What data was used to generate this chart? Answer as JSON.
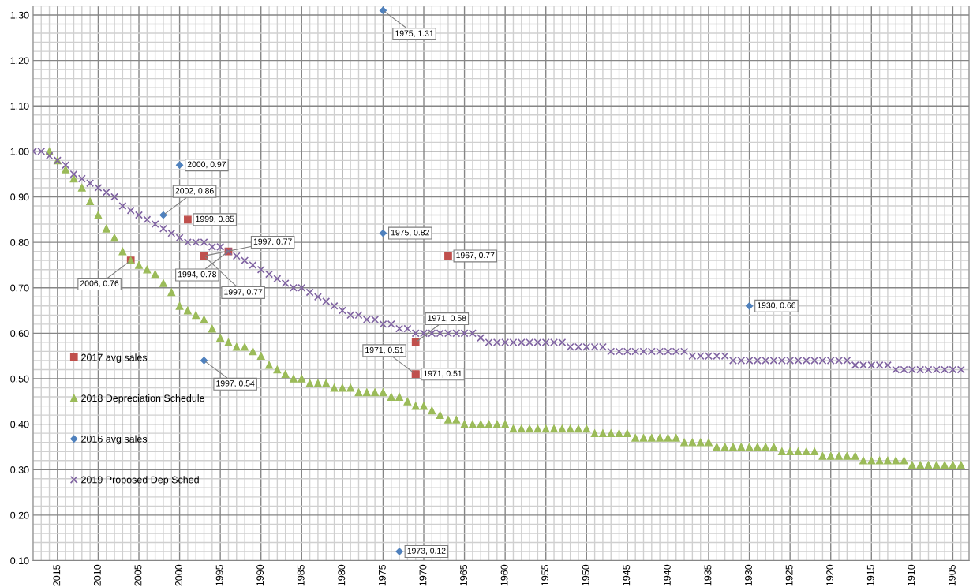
{
  "chart_data": {
    "type": "scatter",
    "series": [
      {
        "name": "2017 avg sales",
        "color": "#c0504d",
        "marker": "square",
        "x": [
          2006,
          1999,
          1997,
          1997,
          1994,
          1967,
          1971,
          1971,
          1971
        ],
        "values": [
          0.76,
          0.85,
          0.77,
          0.77,
          0.78,
          0.77,
          0.58,
          0.51,
          0.51
        ],
        "value_labels": [
          "2006, 0.76",
          "1999, 0.85",
          "1997, 0.77",
          "1997, 0.77",
          "1994, 0.78",
          "1967, 0.77",
          "1971, 0.58",
          "1971, 0.51",
          "1971, 0.51"
        ]
      },
      {
        "name": "2018 Depreciation Schedule",
        "color": "#9bbb59",
        "marker": "triangle",
        "x": [
          2016,
          2015,
          2014,
          2013,
          2012,
          2011,
          2010,
          2009,
          2008,
          2007,
          2006,
          2005,
          2004,
          2003,
          2002,
          2001,
          2000,
          1999,
          1998,
          1997,
          1996,
          1995,
          1994,
          1993,
          1992,
          1991,
          1990,
          1989,
          1988,
          1987,
          1986,
          1985,
          1984,
          1983,
          1982,
          1981,
          1980,
          1979,
          1978,
          1977,
          1976,
          1975,
          1974,
          1973,
          1972,
          1971,
          1970,
          1969,
          1968,
          1967,
          1966,
          1965,
          1964,
          1963,
          1962,
          1961,
          1960,
          1959,
          1958,
          1957,
          1956,
          1955,
          1954,
          1953,
          1952,
          1951,
          1950,
          1949,
          1948,
          1947,
          1946,
          1945,
          1944,
          1943,
          1942,
          1941,
          1940,
          1939,
          1938,
          1937,
          1936,
          1935,
          1934,
          1933,
          1932,
          1931,
          1930,
          1929,
          1928,
          1927,
          1926,
          1925,
          1924,
          1923,
          1922,
          1921,
          1920,
          1919,
          1918,
          1917,
          1916,
          1915,
          1914,
          1913,
          1912,
          1911,
          1910,
          1909,
          1908,
          1907,
          1906,
          1905,
          1904
        ],
        "values": [
          1.0,
          0.98,
          0.96,
          0.94,
          0.92,
          0.89,
          0.86,
          0.83,
          0.81,
          0.78,
          0.76,
          0.75,
          0.74,
          0.73,
          0.71,
          0.69,
          0.66,
          0.65,
          0.64,
          0.63,
          0.61,
          0.59,
          0.58,
          0.57,
          0.57,
          0.56,
          0.55,
          0.53,
          0.52,
          0.51,
          0.5,
          0.5,
          0.49,
          0.49,
          0.49,
          0.48,
          0.48,
          0.48,
          0.47,
          0.47,
          0.47,
          0.47,
          0.46,
          0.46,
          0.45,
          0.44,
          0.44,
          0.43,
          0.42,
          0.41,
          0.41,
          0.4,
          0.4,
          0.4,
          0.4,
          0.4,
          0.4,
          0.39,
          0.39,
          0.39,
          0.39,
          0.39,
          0.39,
          0.39,
          0.39,
          0.39,
          0.39,
          0.38,
          0.38,
          0.38,
          0.38,
          0.38,
          0.37,
          0.37,
          0.37,
          0.37,
          0.37,
          0.37,
          0.36,
          0.36,
          0.36,
          0.36,
          0.35,
          0.35,
          0.35,
          0.35,
          0.35,
          0.35,
          0.35,
          0.35,
          0.34,
          0.34,
          0.34,
          0.34,
          0.34,
          0.33,
          0.33,
          0.33,
          0.33,
          0.33,
          0.32,
          0.32,
          0.32,
          0.32,
          0.32,
          0.32,
          0.31,
          0.31,
          0.31,
          0.31,
          0.31,
          0.31,
          0.31
        ]
      },
      {
        "name": "2016 avg sales",
        "color": "#4f81bd",
        "marker": "diamond",
        "x": [
          2000,
          2002,
          1975,
          1997,
          1975,
          1930,
          1973
        ],
        "values": [
          0.97,
          0.86,
          0.82,
          0.54,
          1.31,
          0.66,
          0.12
        ],
        "value_labels": [
          "2000, 0.97",
          "2002, 0.86",
          "1975, 0.82",
          "1997, 0.54",
          "1975, 1.31",
          "1930, 0.66",
          "1973, 0.12"
        ]
      },
      {
        "name": "2019 Proposed Dep Sched",
        "color": "#8064a2",
        "marker": "cross",
        "x": [
          2018,
          2017,
          2016,
          2015,
          2014,
          2013,
          2012,
          2011,
          2010,
          2009,
          2008,
          2007,
          2006,
          2005,
          2004,
          2003,
          2002,
          2001,
          2000,
          1999,
          1998,
          1997,
          1996,
          1995,
          1994,
          1993,
          1992,
          1991,
          1990,
          1989,
          1988,
          1987,
          1986,
          1985,
          1984,
          1983,
          1982,
          1981,
          1980,
          1979,
          1978,
          1977,
          1976,
          1975,
          1974,
          1973,
          1972,
          1971,
          1970,
          1969,
          1968,
          1967,
          1966,
          1965,
          1964,
          1963,
          1962,
          1961,
          1960,
          1959,
          1958,
          1957,
          1956,
          1955,
          1954,
          1953,
          1952,
          1951,
          1950,
          1949,
          1948,
          1947,
          1946,
          1945,
          1944,
          1943,
          1942,
          1941,
          1940,
          1939,
          1938,
          1937,
          1936,
          1935,
          1934,
          1933,
          1932,
          1931,
          1930,
          1929,
          1928,
          1927,
          1926,
          1925,
          1924,
          1923,
          1922,
          1921,
          1920,
          1919,
          1918,
          1917,
          1916,
          1915,
          1914,
          1913,
          1912,
          1911,
          1910,
          1909,
          1908,
          1907,
          1906,
          1905,
          1904
        ],
        "values": [
          1.0,
          1.0,
          0.99,
          0.98,
          0.97,
          0.95,
          0.94,
          0.93,
          0.92,
          0.91,
          0.9,
          0.88,
          0.87,
          0.86,
          0.85,
          0.84,
          0.83,
          0.82,
          0.81,
          0.8,
          0.8,
          0.8,
          0.79,
          0.79,
          0.78,
          0.77,
          0.76,
          0.75,
          0.74,
          0.73,
          0.72,
          0.71,
          0.7,
          0.7,
          0.69,
          0.68,
          0.67,
          0.66,
          0.65,
          0.64,
          0.64,
          0.63,
          0.63,
          0.62,
          0.62,
          0.61,
          0.61,
          0.6,
          0.6,
          0.6,
          0.6,
          0.6,
          0.6,
          0.6,
          0.6,
          0.59,
          0.58,
          0.58,
          0.58,
          0.58,
          0.58,
          0.58,
          0.58,
          0.58,
          0.58,
          0.58,
          0.57,
          0.57,
          0.57,
          0.57,
          0.57,
          0.56,
          0.56,
          0.56,
          0.56,
          0.56,
          0.56,
          0.56,
          0.56,
          0.56,
          0.56,
          0.55,
          0.55,
          0.55,
          0.55,
          0.55,
          0.54,
          0.54,
          0.54,
          0.54,
          0.54,
          0.54,
          0.54,
          0.54,
          0.54,
          0.54,
          0.54,
          0.54,
          0.54,
          0.54,
          0.54,
          0.53,
          0.53,
          0.53,
          0.53,
          0.53,
          0.52,
          0.52,
          0.52,
          0.52,
          0.52,
          0.52,
          0.52,
          0.52,
          0.52
        ]
      }
    ],
    "xlim": [
      2018,
      1903
    ],
    "xticks": [
      2015,
      2010,
      2005,
      2000,
      1995,
      1990,
      1985,
      1980,
      1975,
      1970,
      1965,
      1960,
      1955,
      1950,
      1945,
      1940,
      1935,
      1930,
      1925,
      1920,
      1915,
      1910,
      1905
    ],
    "ylim": [
      0.1,
      1.32
    ],
    "yticks": [
      {
        "value": 0.1,
        "label": "0.10"
      },
      {
        "value": 0.2,
        "label": "0.20"
      },
      {
        "value": 0.3,
        "label": "0.30"
      },
      {
        "value": 0.4,
        "label": "0.40"
      },
      {
        "value": 0.5,
        "label": "0.50"
      },
      {
        "value": 0.6,
        "label": "0.60"
      },
      {
        "value": 0.7,
        "label": "0.70"
      },
      {
        "value": 0.8,
        "label": "0.80"
      },
      {
        "value": 0.9,
        "label": "0.90"
      },
      {
        "value": 1.0,
        "label": "1.00"
      },
      {
        "value": 1.1,
        "label": "1.10"
      },
      {
        "value": 1.2,
        "label": "1.20"
      },
      {
        "value": 1.3,
        "label": "1.30"
      }
    ],
    "grid": true,
    "legend": "lower left"
  }
}
